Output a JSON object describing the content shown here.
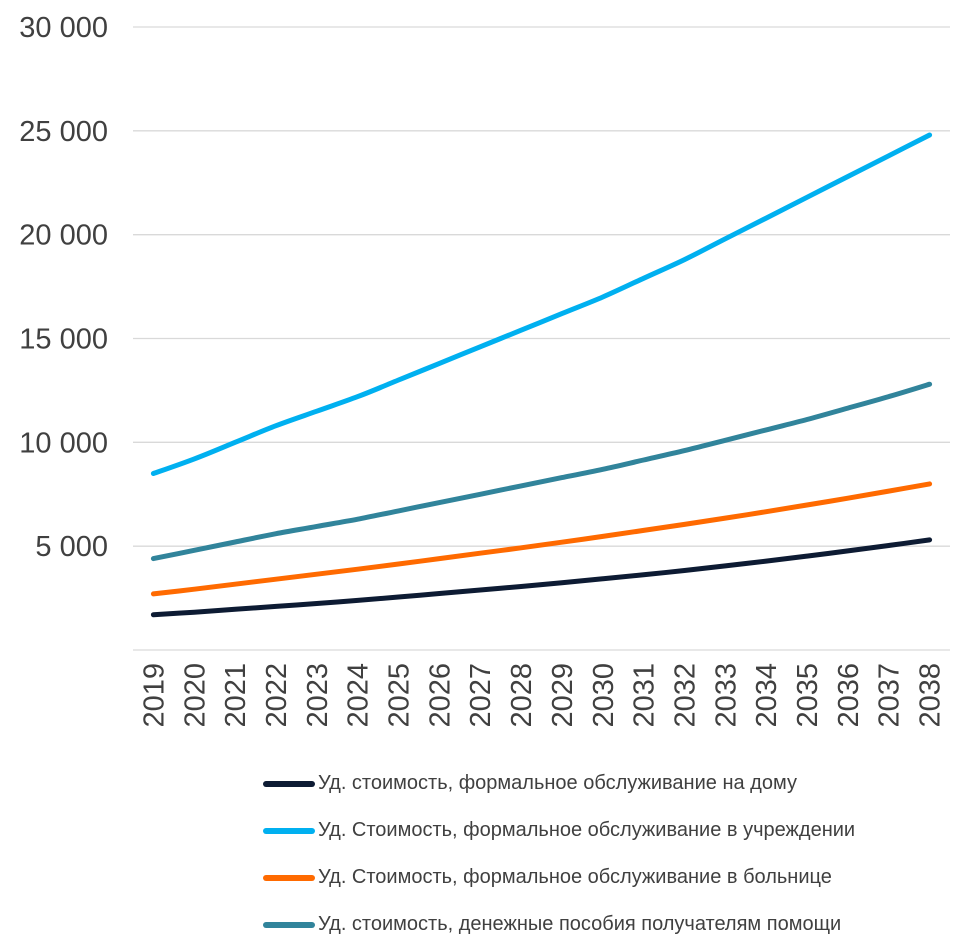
{
  "chart_data": {
    "type": "line",
    "title": "",
    "xlabel": "",
    "ylabel": "",
    "ylim": [
      0,
      30000
    ],
    "yticks": [
      5000,
      10000,
      15000,
      20000,
      25000,
      30000
    ],
    "ytick_labels": [
      "5 000",
      "10 000",
      "15 000",
      "20 000",
      "25 000",
      "30 000"
    ],
    "x": [
      "2019",
      "2020",
      "2021",
      "2022",
      "2023",
      "2024",
      "2025",
      "2026",
      "2027",
      "2028",
      "2029",
      "2030",
      "2031",
      "2032",
      "2033",
      "2034",
      "2035",
      "2036",
      "2037",
      "2038"
    ],
    "grid": "horizontal",
    "legend_position": "bottom",
    "series": [
      {
        "name": "Уд. стоимость, формальное обслуживание на дому",
        "color": "#0d1b33",
        "values": [
          1700,
          1820,
          1960,
          2100,
          2240,
          2390,
          2550,
          2720,
          2890,
          3060,
          3240,
          3430,
          3620,
          3830,
          4050,
          4280,
          4520,
          4770,
          5030,
          5300
        ]
      },
      {
        "name": "Уд. Стоимость,  формальное обслуживание в учреждении",
        "color": "#00b0f0",
        "values": [
          8500,
          9200,
          10000,
          10800,
          11500,
          12200,
          13000,
          13800,
          14600,
          15400,
          16200,
          17000,
          17900,
          18800,
          19800,
          20800,
          21800,
          22800,
          23800,
          24800
        ]
      },
      {
        "name": "Уд. Стоимость,  формальное обслуживание в больнице",
        "color": "#ff6a00",
        "values": [
          2700,
          2930,
          3170,
          3410,
          3650,
          3890,
          4140,
          4400,
          4660,
          4920,
          5190,
          5470,
          5760,
          6050,
          6350,
          6660,
          6980,
          7310,
          7650,
          8000
        ]
      },
      {
        "name": "Уд. стоимость, денежные пособия получателям  помощи",
        "color": "#31849b",
        "values": [
          4400,
          4800,
          5200,
          5600,
          5950,
          6300,
          6700,
          7100,
          7500,
          7900,
          8300,
          8700,
          9150,
          9600,
          10100,
          10600,
          11100,
          11650,
          12200,
          12800
        ]
      }
    ]
  }
}
